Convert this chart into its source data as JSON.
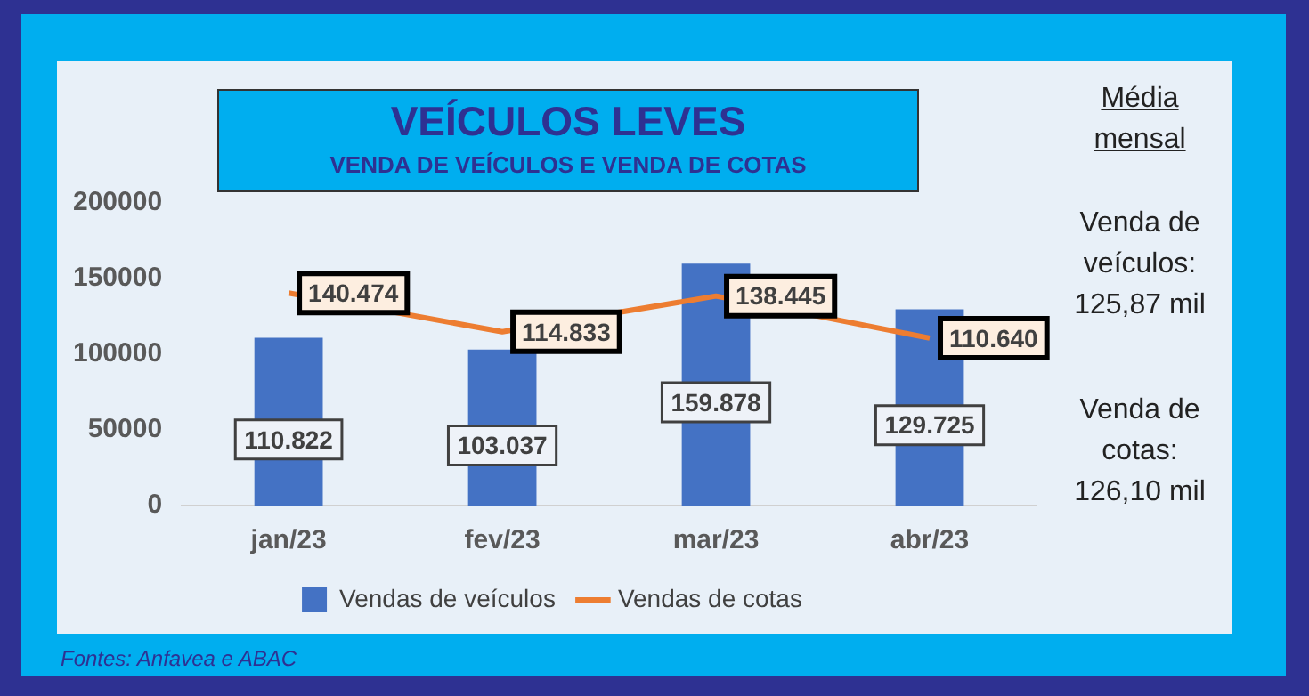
{
  "chart_data": {
    "type": "bar",
    "title": "VEÍCULOS LEVES",
    "subtitle": "VENDA DE VEÍCULOS E VENDA DE COTAS",
    "categories": [
      "jan/23",
      "fev/23",
      "mar/23",
      "abr/23"
    ],
    "series": [
      {
        "name": "Vendas de veículos",
        "color": "#4472c4",
        "values": [
          110822,
          103037,
          159878,
          129725
        ],
        "value_labels": [
          "110.822",
          "103.037",
          "159.878",
          "129.725"
        ]
      },
      {
        "name": "Vendas de cotas",
        "type": "line",
        "color": "#ed7d31",
        "values": [
          140474,
          114833,
          138445,
          110640
        ],
        "value_labels": [
          "140.474",
          "114.833",
          "138.445",
          "110.640"
        ]
      }
    ],
    "ylim": [
      0,
      200000
    ],
    "yticks": [
      0,
      50000,
      100000,
      150000,
      200000
    ],
    "grid": false,
    "legend": "bottom",
    "marker": "none",
    "annotations": [
      "Média mensal",
      "Venda de veículos: 125,87 mil",
      "Venda de cotas: 126,10 mil",
      "Fontes: Anfavea e ABAC"
    ]
  }
}
